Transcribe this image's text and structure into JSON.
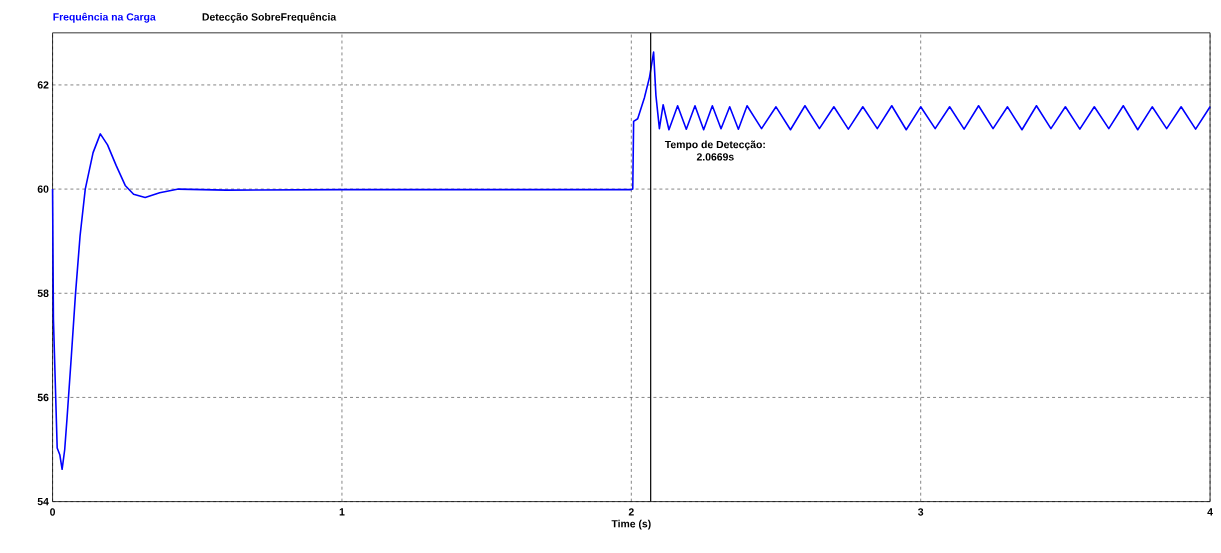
{
  "chart_data": {
    "type": "line",
    "xlabel": "Time (s)",
    "xlim": [
      0,
      4
    ],
    "ylim": [
      54,
      63
    ],
    "xticks": [
      0,
      1,
      2,
      3,
      4
    ],
    "yticks": [
      54,
      56,
      58,
      60,
      62
    ],
    "grid": true,
    "legend": "top left",
    "line_style": "solid",
    "marker": "none",
    "series": [
      {
        "name": "Frequência na Carga",
        "color": "#0000ff",
        "x": [
          0,
          0.003,
          0.016,
          0.025,
          0.033,
          0.042,
          0.05,
          0.065,
          0.079,
          0.095,
          0.113,
          0.14,
          0.165,
          0.19,
          0.22,
          0.251,
          0.28,
          0.32,
          0.37,
          0.435,
          0.6,
          1.0,
          1.5,
          2.0,
          2.005,
          2.008,
          2.022,
          2.045,
          2.063,
          2.077,
          2.085,
          2.097,
          2.11,
          2.13,
          2.16,
          2.19,
          2.22,
          2.25,
          2.28,
          2.31,
          2.34,
          2.37,
          2.4,
          2.45,
          2.5,
          2.55,
          2.6,
          2.65,
          2.7,
          2.75,
          2.8,
          2.85,
          2.9,
          2.95,
          3.0,
          3.05,
          3.1,
          3.15,
          3.2,
          3.25,
          3.3,
          3.35,
          3.4,
          3.45,
          3.5,
          3.55,
          3.6,
          3.65,
          3.7,
          3.75,
          3.8,
          3.85,
          3.9,
          3.95,
          4.0
        ],
        "values": [
          60.0,
          57.5,
          55.03,
          54.9,
          54.62,
          55.0,
          55.6,
          56.8,
          57.97,
          59.1,
          60.0,
          60.7,
          61.06,
          60.85,
          60.45,
          60.07,
          59.9,
          59.84,
          59.93,
          60.0,
          59.98,
          59.99,
          59.99,
          59.99,
          60.0,
          61.3,
          61.35,
          61.75,
          62.15,
          62.63,
          61.8,
          61.16,
          61.62,
          61.14,
          61.6,
          61.15,
          61.6,
          61.14,
          61.6,
          61.16,
          61.58,
          61.15,
          61.6,
          61.16,
          61.58,
          61.14,
          61.6,
          61.16,
          61.58,
          61.15,
          61.58,
          61.16,
          61.6,
          61.14,
          61.58,
          61.16,
          61.58,
          61.15,
          61.6,
          61.16,
          61.58,
          61.14,
          61.6,
          61.16,
          61.58,
          61.15,
          61.58,
          61.16,
          61.6,
          61.14,
          61.58,
          61.16,
          61.58,
          61.15,
          61.58
        ]
      },
      {
        "name": "Detecção SobreFrequência",
        "color": "#000000",
        "x": [
          2.0669,
          2.0669
        ],
        "values": [
          54,
          63
        ]
      }
    ],
    "annotations": [
      "Tempo de Detecção:",
      "2.0669s"
    ]
  }
}
